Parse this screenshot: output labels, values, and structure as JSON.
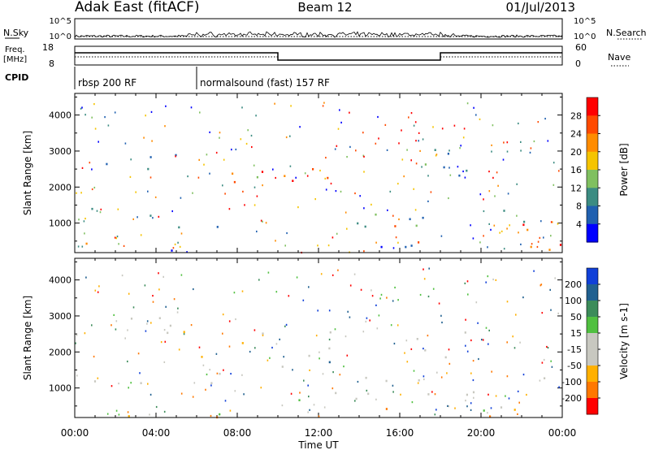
{
  "header": {
    "station": "Adak East (fitACF)",
    "beam": "Beam 12",
    "date": "01/Jul/2013"
  },
  "labels": {
    "nsky": "N.Sky",
    "nsearch": "N.Search",
    "freq_line1": "Freq.",
    "freq_line2": "[MHz]",
    "nave": "Nave",
    "cpid": "CPID"
  },
  "scales": {
    "nsky_ticks": [
      "10^5",
      "10^0"
    ],
    "freq_ticks": [
      "18",
      "8"
    ],
    "nave_ticks": [
      "60",
      "0"
    ]
  },
  "cpid_segments": [
    {
      "start_hour": 0,
      "label": "rbsp 200 RF"
    },
    {
      "start_hour": 6,
      "label": "normalsound (fast) 157 RF"
    }
  ],
  "frequency_trace": [
    {
      "start_hour": 0,
      "end_hour": 10,
      "level": "high"
    },
    {
      "start_hour": 10,
      "end_hour": 18,
      "level": "low"
    },
    {
      "start_hour": 18,
      "end_hour": 24,
      "level": "high"
    }
  ],
  "chart_data": [
    {
      "type": "heatmap",
      "name": "power-panel",
      "x": [
        "00:00",
        "04:00",
        "08:00",
        "12:00",
        "16:00",
        "20:00",
        "00:00"
      ],
      "ylabel": "Slant Range [km]",
      "yticks": [
        1000,
        2000,
        3000,
        4000
      ],
      "ylim": [
        180,
        4600
      ],
      "xlim_hours": [
        0,
        24
      ],
      "colorbar": {
        "label": "Power [dB]",
        "ticks": [
          "28",
          "24",
          "20",
          "16",
          "12",
          "8",
          "4"
        ],
        "colors": [
          "#ff0000",
          "#ff4a00",
          "#ff8c00",
          "#f5c400",
          "#80c060",
          "#3c8c82",
          "#2060b0",
          "#0000ff"
        ]
      }
    },
    {
      "type": "heatmap",
      "name": "velocity-panel",
      "x": [
        "00:00",
        "04:00",
        "08:00",
        "12:00",
        "16:00",
        "20:00",
        "00:00"
      ],
      "xlabel": "Time UT",
      "ylabel": "Slant Range [km]",
      "yticks": [
        1000,
        2000,
        3000,
        4000
      ],
      "ylim": [
        180,
        4600
      ],
      "xlim_hours": [
        0,
        24
      ],
      "colorbar": {
        "label": "Velocity [m s-1]",
        "ticks": [
          "200",
          "100",
          "50",
          "15",
          "-15",
          "-50",
          "-100",
          "-200"
        ],
        "colors": [
          "#1040d8",
          "#206090",
          "#3c8c5a",
          "#50c040",
          "#c8c8c0",
          "#c8c8c0",
          "#ffb000",
          "#ff7800",
          "#ff0000"
        ]
      }
    }
  ]
}
